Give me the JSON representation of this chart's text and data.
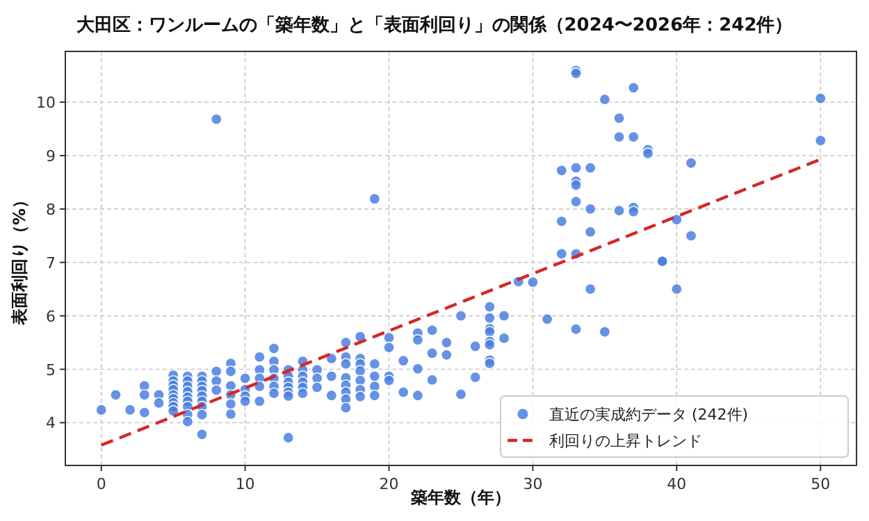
{
  "chart_data": {
    "type": "scatter",
    "title": "大田区：ワンルームの「築年数」と「表面利回り」の関係（2024〜2026年：242件）",
    "xlabel": "築年数（年）",
    "ylabel": "表面利回り（%）",
    "xlim": [
      -2.5,
      52.5
    ],
    "ylim": [
      3.2,
      10.95
    ],
    "xticks": [
      0,
      10,
      20,
      30,
      40,
      50
    ],
    "yticks": [
      4,
      5,
      6,
      7,
      8,
      9,
      10
    ],
    "grid": true,
    "legend": "bottom right",
    "series": [
      {
        "name": "直近の実成約データ (242件)",
        "marker": "circle",
        "color": "#4a7fe0",
        "x": [
          0,
          1,
          2,
          3,
          3,
          3,
          4,
          4,
          5,
          5,
          5,
          5,
          5,
          5,
          5,
          5,
          5,
          6,
          6,
          6,
          6,
          6,
          6,
          6,
          6,
          6,
          7,
          7,
          7,
          7,
          7,
          7,
          7,
          7,
          7,
          8,
          8,
          8,
          8,
          9,
          9,
          9,
          9,
          9,
          9,
          10,
          10,
          10,
          10,
          11,
          11,
          11,
          11,
          11,
          12,
          12,
          12,
          12,
          12,
          12,
          13,
          13,
          13,
          13,
          13,
          13,
          13,
          14,
          14,
          14,
          14,
          14,
          14,
          15,
          15,
          15,
          16,
          16,
          16,
          17,
          17,
          17,
          17,
          17,
          17,
          17,
          17,
          18,
          18,
          18,
          18,
          18,
          18,
          18,
          19,
          19,
          19,
          19,
          19,
          20,
          20,
          20,
          20,
          21,
          21,
          22,
          22,
          22,
          22,
          23,
          23,
          23,
          24,
          24,
          25,
          25,
          26,
          26,
          27,
          27,
          27,
          27,
          27,
          27,
          27,
          27,
          28,
          28,
          29,
          30,
          31,
          32,
          32,
          32,
          33,
          33,
          33,
          33,
          33,
          33,
          33,
          33,
          34,
          34,
          34,
          34,
          35,
          35,
          36,
          36,
          36,
          37,
          37,
          37,
          37,
          38,
          38,
          39,
          39,
          40,
          40,
          41,
          41,
          50,
          50
        ],
        "values": [
          4.24,
          4.52,
          4.24,
          4.69,
          4.52,
          4.19,
          4.52,
          4.37,
          4.89,
          4.78,
          4.7,
          4.62,
          4.52,
          4.45,
          4.37,
          4.3,
          4.22,
          4.87,
          4.78,
          4.68,
          4.58,
          4.48,
          4.4,
          4.3,
          4.15,
          4.02,
          4.87,
          4.78,
          4.68,
          4.6,
          4.5,
          4.4,
          4.3,
          4.15,
          3.78,
          9.68,
          4.96,
          4.78,
          4.61,
          5.11,
          4.96,
          4.69,
          4.52,
          4.35,
          4.16,
          4.83,
          4.62,
          4.5,
          4.4,
          5.23,
          4.99,
          4.83,
          4.68,
          4.4,
          5.39,
          5.15,
          4.99,
          4.83,
          4.68,
          4.55,
          4.99,
          4.87,
          4.76,
          4.66,
          4.57,
          4.5,
          3.72,
          5.15,
          4.99,
          4.87,
          4.76,
          4.66,
          4.55,
          4.99,
          4.83,
          4.66,
          5.2,
          4.87,
          4.51,
          5.5,
          5.23,
          5.1,
          4.84,
          4.7,
          4.57,
          4.44,
          4.28,
          5.61,
          5.2,
          5.1,
          4.97,
          4.79,
          4.62,
          4.49,
          8.19,
          5.1,
          4.87,
          4.68,
          4.51,
          5.59,
          5.41,
          4.87,
          4.79,
          5.16,
          4.57,
          5.68,
          5.55,
          5.01,
          4.51,
          5.73,
          5.3,
          4.8,
          5.5,
          5.27,
          6.0,
          4.53,
          5.43,
          4.85,
          6.17,
          5.96,
          5.76,
          5.7,
          5.52,
          5.46,
          5.17,
          5.11,
          6.0,
          5.58,
          6.64,
          6.63,
          5.94,
          8.72,
          7.77,
          7.16,
          10.59,
          10.54,
          8.77,
          8.52,
          8.45,
          8.14,
          7.16,
          5.75,
          8.77,
          8.0,
          7.57,
          6.5,
          10.05,
          5.7,
          9.7,
          9.35,
          7.97,
          10.27,
          9.35,
          8.03,
          7.95,
          9.11,
          9.04,
          7.02,
          7.02,
          7.8,
          6.5,
          8.86,
          7.5,
          10.07,
          9.28
        ]
      },
      {
        "name": "利回りの上昇トレンド",
        "type": "line",
        "marker": "none",
        "line_style": "dashed",
        "color": "#d62728",
        "x": [
          0,
          50
        ],
        "values": [
          3.58,
          8.93
        ]
      }
    ]
  }
}
